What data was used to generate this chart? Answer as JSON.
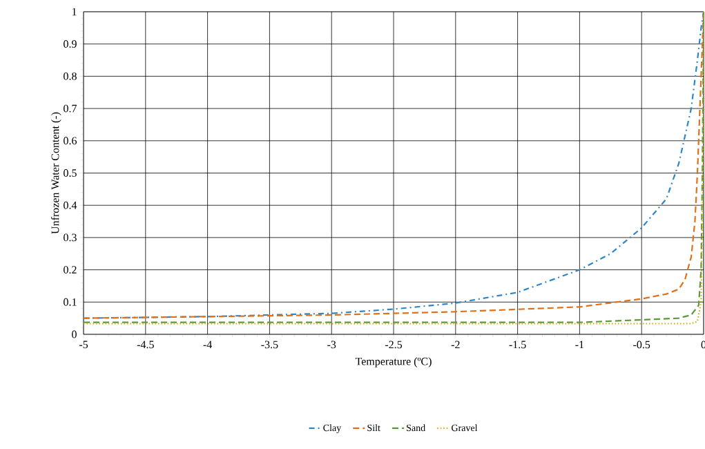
{
  "chart_data": {
    "type": "line",
    "xlabel": "Temperature (ºC)",
    "ylabel": "Unfrozen Water Content (-)",
    "xlim": [
      -5,
      0
    ],
    "ylim": [
      0,
      1
    ],
    "xticks": [
      -5,
      -4.5,
      -4,
      -3.5,
      -3,
      -2.5,
      -2,
      -1.5,
      -1,
      -0.5,
      0
    ],
    "yticks": [
      0,
      0.1,
      0.2,
      0.3,
      0.4,
      0.5,
      0.6,
      0.7,
      0.8,
      0.9,
      1
    ],
    "grid": true,
    "legend": "bottom",
    "marker": "none",
    "series": [
      {
        "name": "Clay",
        "color": "#2e86c8",
        "line_style": "dashdotted",
        "x": [
          -5,
          -4,
          -3,
          -2.5,
          -2,
          -1.5,
          -1,
          -0.75,
          -0.5,
          -0.3,
          -0.2,
          -0.1,
          -0.05,
          -0.02,
          0
        ],
        "values": [
          0.05,
          0.055,
          0.065,
          0.078,
          0.097,
          0.13,
          0.2,
          0.25,
          0.33,
          0.42,
          0.53,
          0.7,
          0.85,
          0.95,
          1
        ]
      },
      {
        "name": "Silt",
        "color": "#e07019",
        "line_style": "dashed",
        "x": [
          -5,
          -4,
          -3,
          -2,
          -1,
          -0.5,
          -0.3,
          -0.2,
          -0.15,
          -0.1,
          -0.07,
          -0.05,
          -0.03,
          -0.01,
          0
        ],
        "values": [
          0.05,
          0.055,
          0.06,
          0.07,
          0.085,
          0.11,
          0.125,
          0.14,
          0.17,
          0.24,
          0.35,
          0.5,
          0.7,
          0.9,
          1
        ]
      },
      {
        "name": "Sand",
        "color": "#5b9a3a",
        "line_style": "dashed",
        "x": [
          -5,
          -1,
          -0.5,
          -0.2,
          -0.1,
          -0.04,
          -0.02,
          -0.01,
          0
        ],
        "values": [
          0.037,
          0.037,
          0.045,
          0.05,
          0.06,
          0.09,
          0.2,
          0.5,
          1
        ]
      },
      {
        "name": "Gravel",
        "color": "#d4a800",
        "line_style": "dotted",
        "x": [
          -5,
          -0.1,
          -0.05,
          -0.02,
          -0.005,
          0
        ],
        "values": [
          0.033,
          0.033,
          0.04,
          0.1,
          0.5,
          1
        ]
      }
    ]
  }
}
